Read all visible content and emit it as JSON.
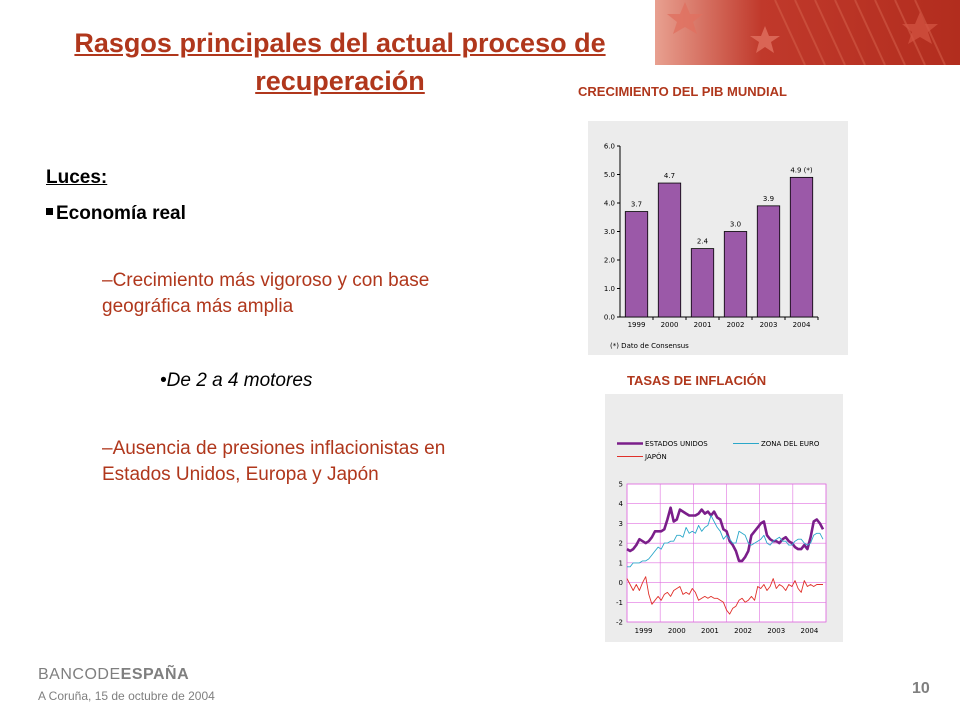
{
  "slide": {
    "title": "Rasgos principales del actual proceso de recuperación",
    "luces_label": "Luces:",
    "economia_label": "Economía real",
    "item1": "–Crecimiento más vigoroso y con base geográfica más amplia",
    "sub1": "•De 2 a 4 motores",
    "item2": "–Ausencia de presiones inflacionistas en Estados Unidos, Europa y Japón",
    "footer": {
      "logo_part1": "BANCO",
      "logo_part2": "DE",
      "logo_part3": "ESPAÑA",
      "location_date": "A Coruña,  15  de octubre de  2004",
      "page_number": "10"
    }
  },
  "colors": {
    "accent": "#b0371c",
    "bar": "#9b59a8",
    "us_line": "#7b1e8a",
    "euro_line": "#2aa7c9",
    "japan_line": "#e0302a",
    "grid_pink": "#e070e0",
    "banner": "#c0392b"
  },
  "chart_data": [
    {
      "type": "bar",
      "title": "CRECIMIENTO DEL PIB MUNDIAL",
      "categories": [
        "1999",
        "2000",
        "2001",
        "2002",
        "2003",
        "2004"
      ],
      "values": [
        3.7,
        4.7,
        2.4,
        3.0,
        3.9,
        4.9
      ],
      "value_labels": [
        "3.7",
        "4.7",
        "2.4",
        "3.0",
        "3.9",
        "4.9 (*)"
      ],
      "yticks": [
        "0.0",
        "1.0",
        "2.0",
        "3.0",
        "4.0",
        "5.0",
        "6.0"
      ],
      "ylim": [
        0,
        6
      ],
      "note": "(*) Dato de Consensus",
      "grid": false
    },
    {
      "type": "line",
      "title": "TASAS DE INFLACIÓN",
      "x_ticks": [
        "1999",
        "2000",
        "2001",
        "2002",
        "2003",
        "2004"
      ],
      "ylim": [
        -2,
        5
      ],
      "yticks": [
        "5",
        "4",
        "3",
        "2",
        "1",
        "0",
        "-1",
        "-2"
      ],
      "grid": true,
      "legend_position": "top",
      "series": [
        {
          "name": "ESTADOS UNIDOS",
          "values": [
            1.7,
            1.6,
            1.7,
            1.9,
            2.2,
            2.1,
            2.0,
            2.1,
            2.3,
            2.6,
            2.6,
            2.6,
            2.7,
            3.2,
            3.8,
            3.1,
            3.2,
            3.7,
            3.6,
            3.5,
            3.4,
            3.4,
            3.4,
            3.5,
            3.7,
            3.5,
            3.6,
            3.4,
            3.6,
            3.3,
            3.2,
            2.7,
            2.6,
            2.1,
            1.9,
            1.6,
            1.1,
            1.1,
            1.3,
            1.6,
            2.4,
            2.6,
            2.8,
            3.0,
            3.1,
            2.4,
            2.2,
            2.1,
            2.1,
            2.0,
            2.2,
            2.3,
            2.1,
            2.0,
            1.8,
            1.7,
            1.7,
            1.9,
            1.7,
            2.3,
            3.1,
            3.2,
            3.0,
            2.7
          ]
        },
        {
          "name": "ZONA DEL EURO",
          "values": [
            0.8,
            0.8,
            1.0,
            1.0,
            1.0,
            1.1,
            1.1,
            1.2,
            1.4,
            1.6,
            1.8,
            1.7,
            2.0,
            2.0,
            2.1,
            2.1,
            2.4,
            2.4,
            2.3,
            2.8,
            2.5,
            2.6,
            2.5,
            2.9,
            2.6,
            2.8,
            2.9,
            3.4,
            3.1,
            2.8,
            2.6,
            2.2,
            2.4,
            2.2,
            2.0,
            2.0,
            2.6,
            2.5,
            2.4,
            2.0,
            1.9,
            2.0,
            2.1,
            2.2,
            2.4,
            2.0,
            1.9,
            2.1,
            2.2,
            2.3,
            2.1,
            2.1,
            1.9,
            1.9,
            2.1,
            2.2,
            2.2,
            2.0,
            1.9,
            2.0,
            2.4,
            2.5,
            2.5,
            2.2
          ]
        },
        {
          "name": "JAPÓN",
          "values": [
            0.2,
            -0.1,
            -0.4,
            -0.1,
            -0.4,
            0.0,
            0.3,
            -0.6,
            -1.1,
            -0.9,
            -0.7,
            -0.9,
            -0.6,
            -0.5,
            -0.7,
            -0.4,
            -0.3,
            -0.2,
            -0.6,
            -0.5,
            -0.6,
            -0.3,
            -0.5,
            -0.9,
            -0.8,
            -0.7,
            -0.8,
            -0.7,
            -0.8,
            -0.8,
            -0.9,
            -1.0,
            -1.4,
            -1.6,
            -1.3,
            -1.2,
            -0.9,
            -0.8,
            -1.0,
            -0.9,
            -0.7,
            -0.9,
            -0.2,
            -0.3,
            -0.1,
            -0.4,
            -0.2,
            0.2,
            -0.3,
            -0.1,
            -0.2,
            -0.4,
            -0.1,
            -0.2,
            0.1,
            -0.3,
            -0.5,
            0.1,
            -0.2,
            -0.1,
            -0.2,
            -0.1,
            -0.1,
            -0.1
          ]
        }
      ]
    }
  ]
}
